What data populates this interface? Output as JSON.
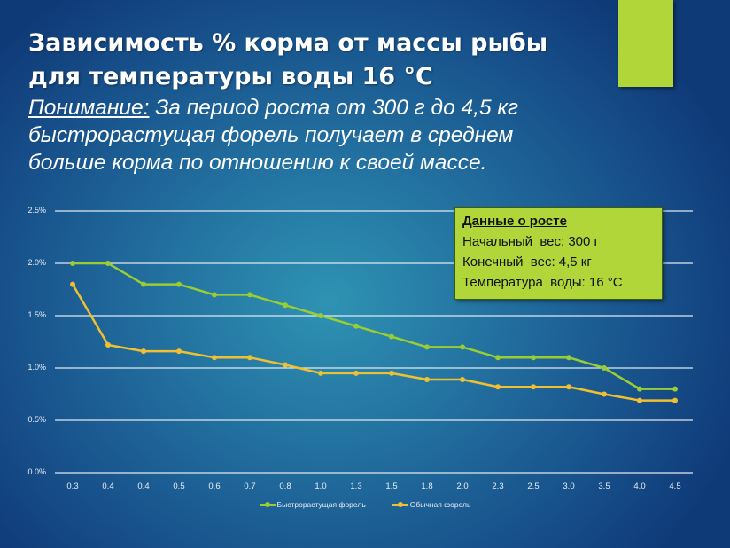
{
  "slide": {
    "title_line1": "Зависимость % корма от массы рыбы",
    "title_line2": "для температуры воды 16 °C",
    "subtitle_lead": "Понимание:",
    "subtitle_line1": " За период роста от 300 г до 4,5 кг",
    "subtitle_line2": "быстрорастущая форель получает в среднем",
    "subtitle_line3": "больше корма по отношению к своей массе.",
    "accent_color": "#b0d63a"
  },
  "info_box": {
    "heading": "Данные о росте",
    "line1": "Начальный  вес: 300 г",
    "line2": "Конечный  вес: 4,5 кг",
    "line3": "Температура  воды: 16 °C"
  },
  "chart_data": {
    "type": "line",
    "title": "",
    "xlabel": "",
    "ylabel": "",
    "categories": [
      "0.3",
      "0.4",
      "0.4",
      "0.5",
      "0.6",
      "0.7",
      "0.8",
      "1.0",
      "1.3",
      "1.5",
      "1.8",
      "2.0",
      "2.3",
      "2.5",
      "3.0",
      "3.5",
      "4.0",
      "4.5"
    ],
    "series": [
      {
        "name": "Быстрорастущая форель",
        "color": "#9acd32",
        "values": [
          2.0,
          2.0,
          1.8,
          1.8,
          1.7,
          1.7,
          1.6,
          1.5,
          1.4,
          1.3,
          1.2,
          1.2,
          1.1,
          1.1,
          1.1,
          1.0,
          0.8,
          0.8
        ]
      },
      {
        "name": "Обычная форель",
        "color": "#f0c030",
        "values": [
          1.8,
          1.22,
          1.16,
          1.16,
          1.1,
          1.1,
          1.03,
          0.95,
          0.95,
          0.95,
          0.89,
          0.89,
          0.82,
          0.82,
          0.82,
          0.75,
          0.69,
          0.69
        ]
      }
    ],
    "y_ticks": [
      "0.0%",
      "0.5%",
      "1.0%",
      "1.5%",
      "2.0%",
      "2.5%"
    ],
    "ylim": [
      0,
      2.5
    ],
    "grid": true,
    "legend_position": "bottom"
  }
}
